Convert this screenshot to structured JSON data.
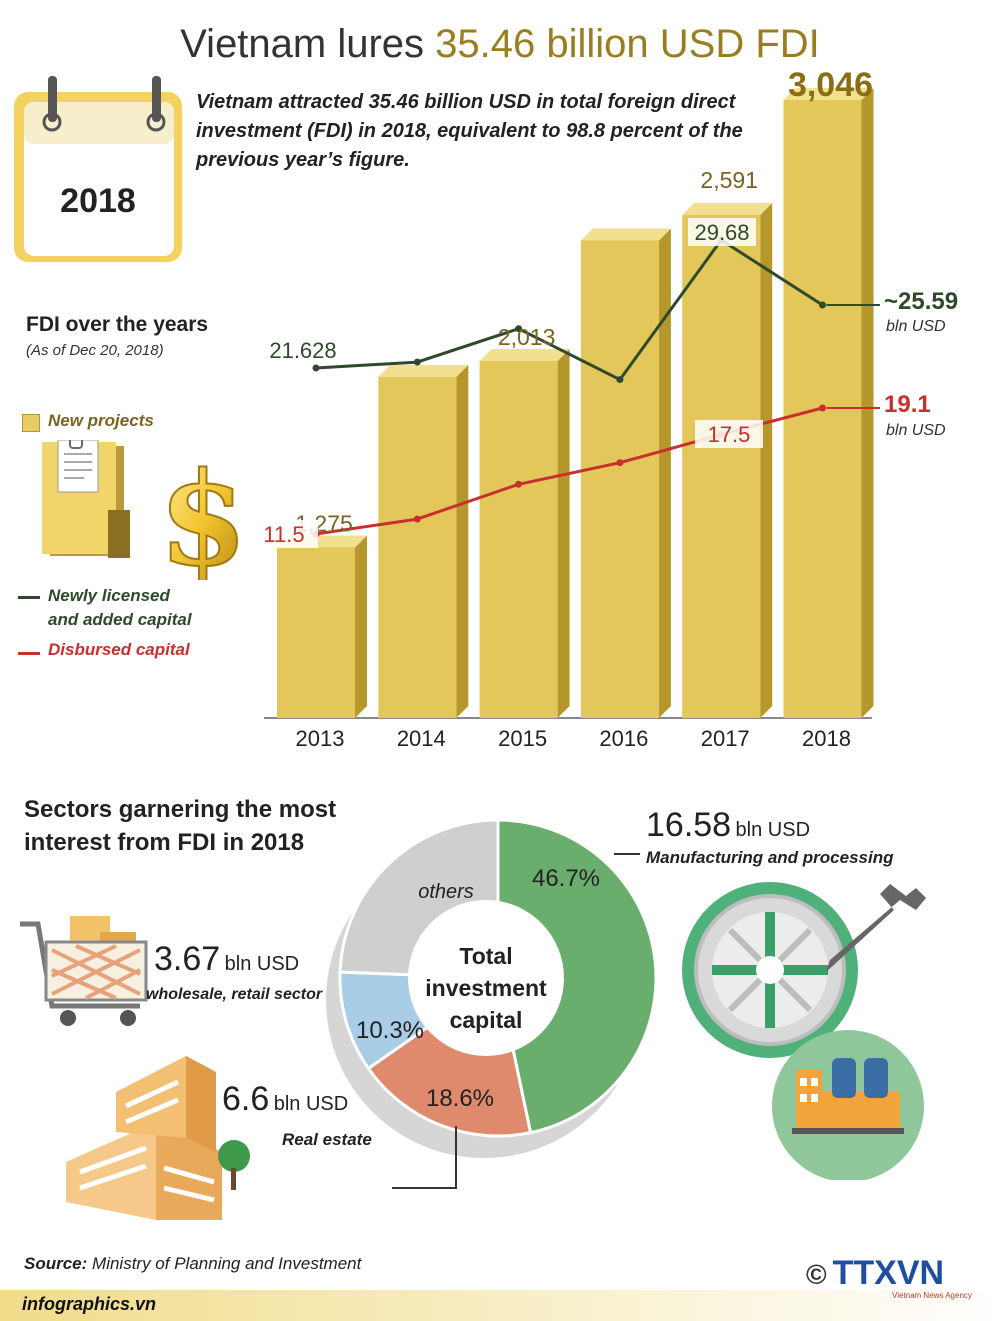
{
  "header": {
    "title_prefix": "Vietnam lures",
    "title_highlight": "35.46 billion USD FDI",
    "intro": "Vietnam attracted 35.46 billion USD in total foreign direct investment (FDI) in 2018, equivalent to 98.8 percent of the previous year’s figure.",
    "calendar_year": "2018"
  },
  "fdi_section": {
    "title": "FDI over the years",
    "subtitle": "(As of  Dec 20, 2018)",
    "legend": {
      "new_projects": "New projects",
      "newly_licensed_line1": "Newly licensed",
      "newly_licensed_line2": "and added capital",
      "disbursed": "Disbursed capital"
    },
    "end_unit_green": "bln USD",
    "end_unit_red": "bln USD",
    "end_label_green": "~25.59",
    "end_label_red": "19.1"
  },
  "pie_section": {
    "title_line1": "Sectors garnering the most",
    "title_line2": "interest from FDI in 2018",
    "center_line1": "Total",
    "center_line2": "investment",
    "center_line3": "capital",
    "manufacturing": {
      "amount": "16.58",
      "unit": "bln USD",
      "label": "Manufacturing and processing"
    },
    "wholesale": {
      "amount": "3.67",
      "unit": "bln USD",
      "label": "wholesale, retail sector"
    },
    "real_estate": {
      "amount": "6.6",
      "unit": "bln USD",
      "label": "Real estate"
    }
  },
  "footer": {
    "source_label": "Source:",
    "source_text": "Ministry of Planning and Investment",
    "site": "infographics.vn",
    "copyright": "©",
    "brand": "TTXVN",
    "brand_sub": "Vietnam News Agency"
  },
  "colors": {
    "bar": "#e3c75a",
    "bar_side": "#b6972c",
    "bar_top": "#f2e08e",
    "green_line": "#2e4a2b",
    "red_line": "#c8302e",
    "pie_green": "#6aae6e",
    "pie_red": "#df8a6c",
    "pie_blue": "#a9cde6",
    "pie_gray": "#cfcfcf"
  },
  "chart_data": [
    {
      "type": "bar",
      "title": "FDI over the years",
      "subtitle": "(As of  Dec 20, 2018)",
      "categories": [
        "2013",
        "2014",
        "2015",
        "2016",
        "2017",
        "2018"
      ],
      "series": [
        {
          "name": "New projects",
          "values": [
            1275,
            1950,
            2013,
            2490,
            2591,
            3046
          ],
          "labels": [
            "1,275",
            "",
            "2,013",
            "",
            "2,591",
            "3,046"
          ]
        },
        {
          "name": "Newly licensed and added capital",
          "values": [
            21.628,
            22.0,
            24.1,
            20.9,
            29.68,
            25.59
          ],
          "labels": [
            "21.628",
            "",
            "",
            "",
            "29.68",
            "~25.59"
          ]
        },
        {
          "name": "Disbursed capital",
          "values": [
            11.5,
            12.4,
            14.5,
            15.8,
            17.5,
            19.1
          ],
          "labels": [
            "11.5",
            "",
            "",
            "",
            "17.5",
            "19.1"
          ]
        }
      ]
    },
    {
      "type": "pie",
      "title": "Sectors garnering the most interest from FDI in 2018",
      "labels": [
        "Manufacturing and processing",
        "Real estate",
        "wholesale, retail sector",
        "others"
      ],
      "values": [
        46.7,
        18.6,
        10.3,
        24.4
      ],
      "value_labels": [
        "46.7%",
        "18.6%",
        "10.3%",
        "others"
      ]
    }
  ]
}
